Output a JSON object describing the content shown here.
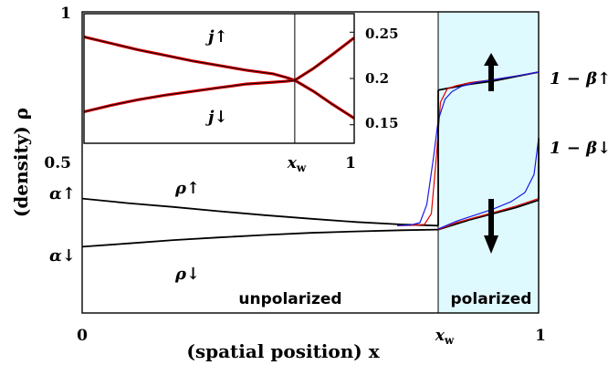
{
  "chart_data": {
    "type": "line",
    "xlabel": "(spatial position) x",
    "ylabel": "(density) ρ",
    "x_ticks": [
      {
        "value": 0,
        "label": "0"
      },
      {
        "value": 0.78,
        "label": "x_w"
      },
      {
        "value": 1,
        "label": "1"
      }
    ],
    "y_ticks": [
      {
        "value": 0,
        "label": ""
      },
      {
        "value": 0.5,
        "label": "0.5"
      },
      {
        "value": 1,
        "label": "1"
      }
    ],
    "xlim": [
      0,
      1
    ],
    "ylim": [
      0,
      1
    ],
    "wall_position": 0.78,
    "boundary_labels": {
      "alpha_up": {
        "value": 0.38,
        "label": "α↑"
      },
      "alpha_down": {
        "value": 0.22,
        "label": "α↓"
      },
      "one_minus_beta_up": {
        "value": 0.8,
        "label": "1 − β↑"
      },
      "one_minus_beta_down": {
        "value": 0.58,
        "label": "1 − β↓"
      }
    },
    "annotations": {
      "rho_up": "ρ↑",
      "rho_down": "ρ↓",
      "unpolarized": "unpolarized",
      "polarized": "polarized"
    },
    "colors": {
      "theory": "#000000",
      "simulation_red": "#e00000",
      "simulation_blue": "#1a1ae6",
      "polarized_fill": "#dffaff"
    },
    "series": [
      {
        "color": "#000000",
        "x": [
          0,
          0.1,
          0.2,
          0.3,
          0.4,
          0.5,
          0.6,
          0.7,
          0.78
        ],
        "values": [
          0.38,
          0.365,
          0.352,
          0.338,
          0.325,
          0.313,
          0.302,
          0.294,
          0.29
        ]
      },
      {
        "color": "#000000",
        "x": [
          0,
          0.1,
          0.2,
          0.3,
          0.4,
          0.5,
          0.6,
          0.7,
          0.78
        ],
        "values": [
          0.22,
          0.231,
          0.242,
          0.251,
          0.259,
          0.266,
          0.271,
          0.275,
          0.277
        ]
      },
      {
        "color": "#000000",
        "x": [
          0.78,
          0.85,
          0.9,
          0.95,
          1.0
        ],
        "values": [
          0.74,
          0.76,
          0.77,
          0.785,
          0.8
        ]
      },
      {
        "color": "#000000",
        "x": [
          0.78,
          0.85,
          0.9,
          0.95,
          1.0
        ],
        "values": [
          0.277,
          0.31,
          0.33,
          0.35,
          0.375
        ]
      },
      {
        "color": "#e00000",
        "x": [
          0.69,
          0.72,
          0.75,
          0.765,
          0.775,
          0.785,
          0.8,
          0.82,
          0.85,
          0.9,
          0.95,
          1.0
        ],
        "values": [
          0.29,
          0.291,
          0.294,
          0.33,
          0.5,
          0.7,
          0.745,
          0.755,
          0.765,
          0.775,
          0.787,
          0.8
        ]
      },
      {
        "color": "#e00000",
        "x": [
          0.78,
          0.82,
          0.86,
          0.9,
          0.95,
          0.98,
          1.0
        ],
        "values": [
          0.277,
          0.3,
          0.317,
          0.333,
          0.355,
          0.37,
          0.38
        ]
      },
      {
        "color": "#1a1ae6",
        "x": [
          0.69,
          0.72,
          0.74,
          0.755,
          0.77,
          0.78,
          0.795,
          0.81,
          0.83,
          0.86,
          0.9,
          0.95,
          1.0
        ],
        "values": [
          0.29,
          0.292,
          0.3,
          0.36,
          0.52,
          0.64,
          0.71,
          0.735,
          0.752,
          0.765,
          0.775,
          0.787,
          0.8
        ]
      },
      {
        "color": "#1a1ae6",
        "x": [
          0.78,
          0.82,
          0.86,
          0.9,
          0.94,
          0.97,
          0.99,
          1.0
        ],
        "values": [
          0.279,
          0.305,
          0.325,
          0.345,
          0.37,
          0.4,
          0.46,
          0.58
        ]
      }
    ],
    "inset": {
      "type": "line",
      "xlim": [
        0,
        1
      ],
      "ylim": [
        0.13,
        0.27
      ],
      "x_ticks": [
        {
          "value": 0.78,
          "label": "x_w"
        },
        {
          "value": 1,
          "label": "1"
        }
      ],
      "y_ticks": [
        {
          "value": 0.15,
          "label": "0.15"
        },
        {
          "value": 0.2,
          "label": "0.2"
        },
        {
          "value": 0.25,
          "label": "0.25"
        }
      ],
      "annotations": {
        "j_up": "j↑",
        "j_down": "j↓"
      },
      "series": [
        {
          "color": "#e00000",
          "x": [
            0,
            0.1,
            0.2,
            0.3,
            0.4,
            0.5,
            0.6,
            0.7,
            0.75,
            0.78,
            0.85,
            0.92,
            1.0
          ],
          "values": [
            0.245,
            0.238,
            0.231,
            0.225,
            0.219,
            0.214,
            0.209,
            0.205,
            0.201,
            0.198,
            0.186,
            0.172,
            0.157
          ]
        },
        {
          "color": "#e00000",
          "x": [
            0,
            0.1,
            0.2,
            0.3,
            0.4,
            0.5,
            0.6,
            0.7,
            0.75,
            0.78,
            0.85,
            0.92,
            1.0
          ],
          "values": [
            0.164,
            0.171,
            0.177,
            0.182,
            0.186,
            0.19,
            0.194,
            0.196,
            0.197,
            0.198,
            0.211,
            0.226,
            0.244
          ]
        }
      ]
    }
  }
}
